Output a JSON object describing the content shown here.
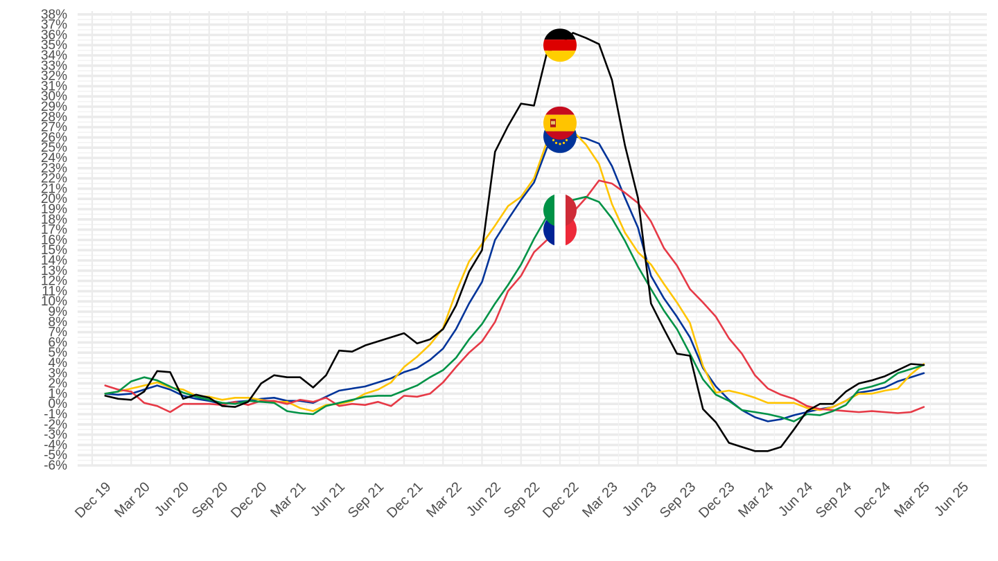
{
  "chart_data": {
    "type": "line",
    "title": "",
    "xlabel": "",
    "ylabel": "",
    "ylim": [
      -6,
      38
    ],
    "y_ticks": [
      "-6%",
      "-5%",
      "-4%",
      "-3%",
      "-2%",
      "-1%",
      "0%",
      "1%",
      "2%",
      "3%",
      "4%",
      "5%",
      "6%",
      "7%",
      "8%",
      "9%",
      "10%",
      "11%",
      "12%",
      "13%",
      "14%",
      "15%",
      "16%",
      "17%",
      "18%",
      "19%",
      "20%",
      "21%",
      "22%",
      "23%",
      "24%",
      "25%",
      "26%",
      "27%",
      "28%",
      "29%",
      "30%",
      "31%",
      "32%",
      "33%",
      "34%",
      "35%",
      "36%",
      "37%",
      "38%"
    ],
    "x_ticks": [
      "Dec 19",
      "Mar 20",
      "Jun 20",
      "Sep 20",
      "Dec 20",
      "Mar 21",
      "Jun 21",
      "Sep 21",
      "Dec 21",
      "Mar 22",
      "Jun 22",
      "Sep 22",
      "Dec 22",
      "Mar 23",
      "Jun 23",
      "Sep 23",
      "Dec 23",
      "Mar 24",
      "Jun 24",
      "Sep 24",
      "Dec 24",
      "Mar 25",
      "Jun 25"
    ],
    "grid": true,
    "legend": "flag icons at Dec 22",
    "x": [
      "Jan 20",
      "Feb 20",
      "Mar 20",
      "Apr 20",
      "May 20",
      "Jun 20",
      "Jul 20",
      "Aug 20",
      "Sep 20",
      "Oct 20",
      "Nov 20",
      "Dec 20",
      "Jan 21",
      "Feb 21",
      "Mar 21",
      "Apr 21",
      "May 21",
      "Jun 21",
      "Jul 21",
      "Aug 21",
      "Sep 21",
      "Oct 21",
      "Nov 21",
      "Dec 21",
      "Jan 22",
      "Feb 22",
      "Mar 22",
      "Apr 22",
      "May 22",
      "Jun 22",
      "Jul 22",
      "Aug 22",
      "Sep 22",
      "Oct 22",
      "Nov 22",
      "Dec 22",
      "Jan 23",
      "Feb 23",
      "Mar 23",
      "Apr 23",
      "May 23",
      "Jun 23",
      "Jul 23",
      "Aug 23",
      "Sep 23",
      "Oct 23",
      "Nov 23",
      "Dec 23",
      "Jan 24",
      "Feb 24",
      "Mar 24",
      "Apr 24",
      "May 24",
      "Jun 24",
      "Jul 24",
      "Aug 24",
      "Sep 24",
      "Oct 24",
      "Nov 24",
      "Dec 24",
      "Jan 25",
      "Feb 25",
      "Mar 25",
      "Apr 25"
    ],
    "series": [
      {
        "id": "de",
        "color": "#000000",
        "flag": "germany-flag",
        "values": [
          0.8,
          0.5,
          0.4,
          1.2,
          3.2,
          3.1,
          0.5,
          0.9,
          0.6,
          -0.2,
          -0.3,
          0.2,
          2.0,
          2.8,
          2.6,
          2.6,
          1.6,
          2.8,
          5.2,
          5.1,
          5.7,
          6.1,
          6.5,
          6.9,
          5.9,
          6.3,
          7.3,
          9.6,
          12.9,
          15.0,
          24.6,
          27.1,
          29.3,
          29.1,
          34.3,
          35.0,
          36.2,
          35.7,
          35.1,
          31.6,
          25.2,
          20.1,
          9.8,
          7.3,
          4.9,
          4.7,
          -0.5,
          -1.8,
          -3.8,
          -4.2,
          -4.6,
          -4.6,
          -4.2,
          -2.5,
          -0.7,
          0.0,
          0.0,
          1.2,
          2.0,
          2.3,
          2.7,
          3.3,
          3.9,
          3.8
        ]
      },
      {
        "id": "eu",
        "color": "#003399",
        "flag": "european-union-flag",
        "values": [
          1.0,
          0.9,
          1.0,
          1.4,
          1.8,
          1.4,
          0.8,
          0.5,
          0.3,
          0.0,
          0.2,
          0.3,
          0.5,
          0.6,
          0.3,
          0.3,
          0.1,
          0.7,
          1.3,
          1.5,
          1.7,
          2.1,
          2.5,
          3.1,
          3.5,
          4.3,
          5.4,
          7.3,
          9.8,
          11.9,
          16.0,
          18.0,
          19.9,
          21.6,
          25.0,
          26.1,
          26.1,
          25.9,
          25.4,
          23.2,
          20.1,
          17.2,
          12.5,
          10.3,
          8.5,
          6.5,
          3.5,
          1.7,
          0.4,
          -0.6,
          -1.3,
          -1.7,
          -1.5,
          -1.1,
          -0.8,
          -0.5,
          -0.3,
          0.3,
          1.1,
          1.3,
          1.6,
          2.2,
          2.6,
          3.0
        ]
      },
      {
        "id": "es",
        "color": "#FFC400",
        "flag": "spain-flag",
        "values": [
          1.0,
          1.2,
          1.5,
          1.8,
          2.1,
          1.6,
          1.4,
          0.8,
          0.7,
          0.4,
          0.6,
          0.6,
          0.4,
          0.2,
          0.2,
          -0.4,
          -0.7,
          -0.1,
          0.0,
          0.3,
          1.0,
          1.4,
          2.1,
          3.6,
          4.6,
          5.8,
          7.4,
          10.9,
          13.9,
          15.6,
          17.4,
          19.3,
          20.2,
          22.0,
          25.6,
          27.4,
          26.6,
          25.3,
          23.4,
          19.5,
          16.7,
          14.8,
          13.6,
          11.7,
          9.9,
          7.9,
          3.7,
          1.1,
          1.3,
          1.0,
          0.6,
          0.1,
          0.1,
          0.1,
          -0.4,
          -0.6,
          -0.3,
          0.3,
          1.0,
          1.0,
          1.3,
          1.5,
          2.9,
          3.9
        ]
      },
      {
        "id": "fr",
        "color": "#E63946",
        "flag": "france-flag",
        "values": [
          1.8,
          1.4,
          1.2,
          0.1,
          -0.2,
          -0.8,
          0.0,
          0.0,
          0.0,
          -0.1,
          0.2,
          -0.1,
          0.3,
          0.3,
          0.0,
          0.4,
          0.2,
          0.6,
          -0.2,
          0.0,
          -0.1,
          0.2,
          -0.2,
          0.8,
          0.7,
          1.0,
          2.1,
          3.6,
          5.0,
          6.1,
          8.0,
          11.0,
          12.5,
          14.8,
          16.0,
          17.0,
          18.7,
          20.1,
          21.8,
          21.5,
          20.6,
          19.6,
          17.8,
          15.2,
          13.5,
          11.2,
          9.9,
          8.5,
          6.4,
          4.9,
          2.8,
          1.5,
          0.9,
          0.5,
          -0.2,
          -0.5,
          -0.6,
          -0.7,
          -0.8,
          -0.7,
          -0.8,
          -0.9,
          -0.8,
          -0.3
        ]
      },
      {
        "id": "it",
        "color": "#009246",
        "flag": "italy-flag",
        "values": [
          1.0,
          1.2,
          2.2,
          2.6,
          2.3,
          1.7,
          1.1,
          0.7,
          0.4,
          0.1,
          0.0,
          0.3,
          0.2,
          0.1,
          -0.7,
          -0.9,
          -1.0,
          -0.2,
          0.1,
          0.4,
          0.7,
          0.8,
          0.8,
          1.3,
          1.8,
          2.6,
          3.3,
          4.5,
          6.3,
          7.8,
          9.8,
          11.6,
          13.6,
          16.1,
          18.3,
          18.9,
          19.9,
          20.2,
          19.7,
          18.1,
          15.9,
          13.4,
          11.2,
          9.1,
          7.3,
          4.9,
          2.4,
          0.9,
          0.3,
          -0.6,
          -0.8,
          -1.0,
          -1.3,
          -1.7,
          -1.0,
          -1.1,
          -0.7,
          -0.1,
          1.4,
          1.7,
          2.1,
          3.0,
          3.4,
          3.8
        ]
      }
    ]
  }
}
